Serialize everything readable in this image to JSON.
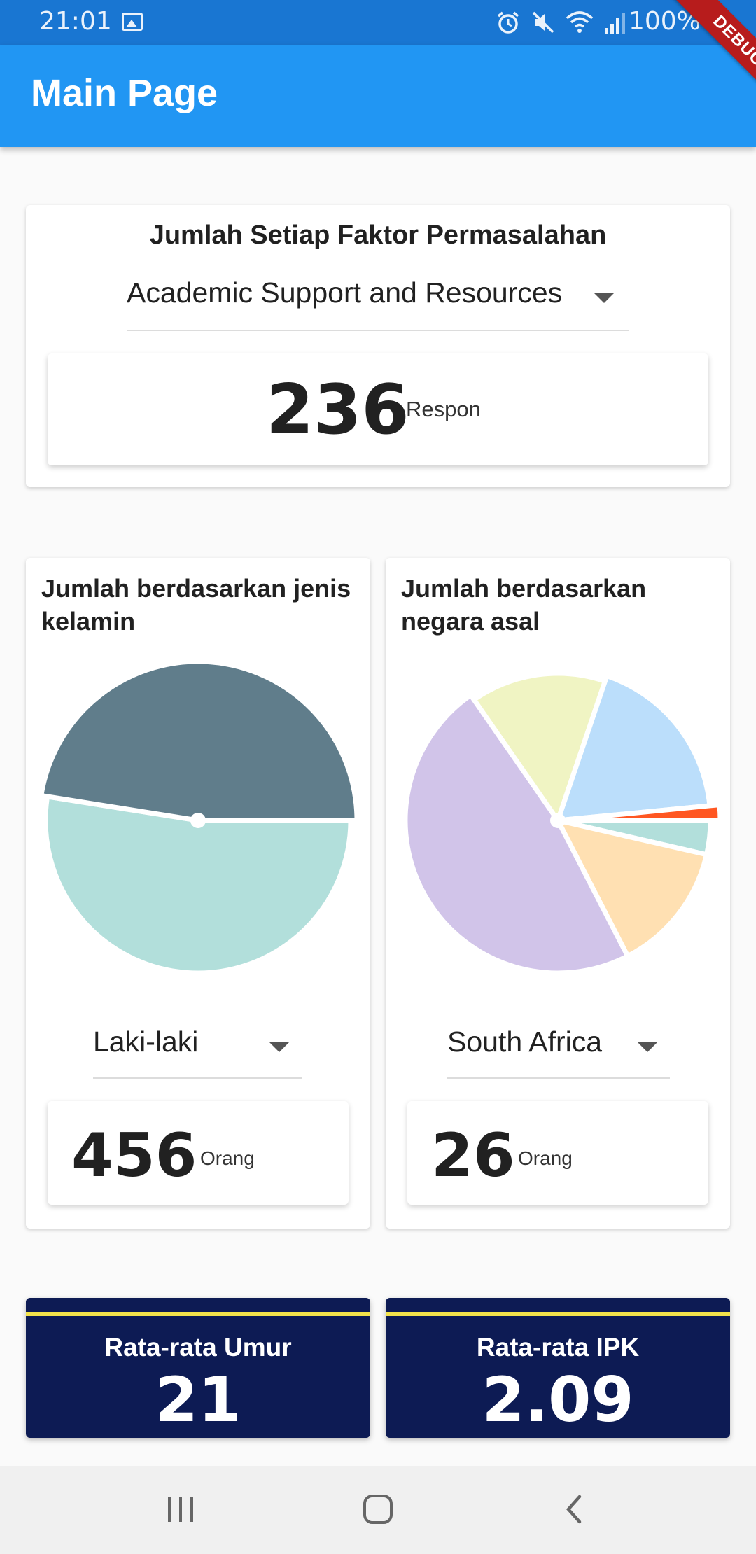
{
  "status_bar": {
    "time": "21:01",
    "battery": "100%",
    "icons": [
      "image-icon",
      "alarm-icon",
      "mute-icon",
      "wifi-icon",
      "signal-icon",
      "battery-icon"
    ]
  },
  "debug_banner": "DEBUG",
  "app_bar": {
    "title": "Main Page"
  },
  "factor_card": {
    "title": "Jumlah Setiap Faktor Permasalahan",
    "selected_factor": "Academic Support and Resources",
    "count": "236",
    "unit": "Respon"
  },
  "gender_card": {
    "title": "Jumlah berdasarkan jenis kelamin",
    "selected": "Laki-laki",
    "count": "456",
    "unit": "Orang"
  },
  "country_card": {
    "title": "Jumlah berdasarkan negara asal",
    "selected": "South Africa",
    "count": "26",
    "unit": "Orang"
  },
  "stats": {
    "age_label": "Rata-rata Umur",
    "age_value": "21",
    "gpa_label": "Rata-rata IPK",
    "gpa_value": "2.09"
  },
  "colors": {
    "status_bar": "#1976d2",
    "app_bar": "#2196f3",
    "stat_card": "#0d1b54",
    "stat_stripe": "#f2e24b",
    "gender_slices": [
      "#b2dfdb",
      "#607d8b"
    ],
    "country_slices": [
      "#b2dfdb",
      "#ffe0b2",
      "#d1c4e9",
      "#f0f4c3",
      "#bbdefb",
      "#ff5722"
    ]
  },
  "chart_data": [
    {
      "type": "pie",
      "values": [
        52.5,
        47.5
      ]
    },
    {
      "type": "pie",
      "values": [
        3.5,
        13.5,
        46.7,
        14.5,
        17.8,
        1.5
      ]
    }
  ]
}
